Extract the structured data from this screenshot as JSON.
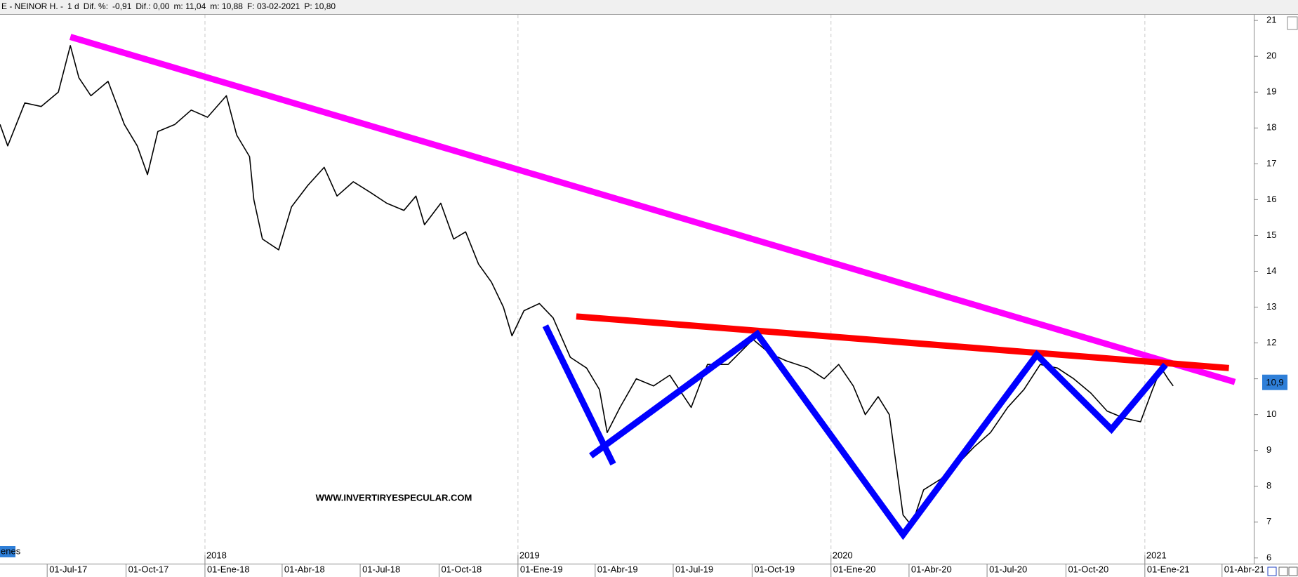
{
  "chart_data": {
    "type": "line",
    "header": [
      {
        "text": "E - NEINOR H. -",
        "color": "#000000"
      },
      {
        "text": "1 d",
        "color": "#000000"
      },
      {
        "text": "Dif. %:",
        "color": "#000000"
      },
      {
        "text": "-0,91",
        "color": "#e00000"
      },
      {
        "text": "Dif.: 0,00",
        "color": "#000000"
      },
      {
        "text": "m: 11,04",
        "color": "#000000"
      },
      {
        "text": "m: 10,88",
        "color": "#000000"
      },
      {
        "text": "F: 03-02-2021",
        "color": "#000000"
      },
      {
        "text": "P: 10,80",
        "color": "#e00000"
      }
    ],
    "watermark": "WWW.INVERTIRYESPECULAR.COM",
    "panel_label": "enes",
    "last_price": {
      "value": 10.9,
      "label": "10,9"
    },
    "xlim": [
      "2017-05-07",
      "2021-05-08"
    ],
    "xticks": [
      {
        "value": "2017-07-01",
        "label": "01-Jul-17"
      },
      {
        "value": "2017-10-01",
        "label": "01-Oct-17"
      },
      {
        "value": "2018-01-01",
        "label": "01-Ene-18"
      },
      {
        "value": "2018-04-01",
        "label": "01-Abr-18"
      },
      {
        "value": "2018-07-01",
        "label": "01-Jul-18"
      },
      {
        "value": "2018-10-01",
        "label": "01-Oct-18"
      },
      {
        "value": "2019-01-01",
        "label": "01-Ene-19"
      },
      {
        "value": "2019-04-01",
        "label": "01-Abr-19"
      },
      {
        "value": "2019-07-01",
        "label": "01-Jul-19"
      },
      {
        "value": "2019-10-01",
        "label": "01-Oct-19"
      },
      {
        "value": "2020-01-01",
        "label": "01-Ene-20"
      },
      {
        "value": "2020-04-01",
        "label": "01-Abr-20"
      },
      {
        "value": "2020-07-01",
        "label": "01-Jul-20"
      },
      {
        "value": "2020-10-01",
        "label": "01-Oct-20"
      },
      {
        "value": "2021-01-01",
        "label": "01-Ene-21"
      },
      {
        "value": "2021-04-01",
        "label": "01-Abr-21"
      }
    ],
    "year_markers": [
      {
        "value": "2018-01-01",
        "label": "2018"
      },
      {
        "value": "2019-01-01",
        "label": "2019"
      },
      {
        "value": "2020-01-01",
        "label": "2020"
      },
      {
        "value": "2021-01-01",
        "label": "2021"
      }
    ],
    "ylim": [
      5.84,
      21.16
    ],
    "yticks": [
      6,
      7,
      8,
      9,
      10,
      11,
      12,
      13,
      14,
      15,
      16,
      17,
      18,
      19,
      20,
      21
    ],
    "series": [
      {
        "color": "#000000",
        "x": [
          "2017-05-07",
          "2017-05-16",
          "2017-06-05",
          "2017-06-24",
          "2017-07-14",
          "2017-07-28",
          "2017-08-07",
          "2017-08-21",
          "2017-09-10",
          "2017-09-29",
          "2017-10-14",
          "2017-10-26",
          "2017-11-07",
          "2017-11-27",
          "2017-12-16",
          "2018-01-04",
          "2018-01-26",
          "2018-02-07",
          "2018-02-22",
          "2018-02-27",
          "2018-03-09",
          "2018-03-28",
          "2018-04-12",
          "2018-05-01",
          "2018-05-20",
          "2018-06-04",
          "2018-06-23",
          "2018-07-13",
          "2018-08-01",
          "2018-08-21",
          "2018-09-04",
          "2018-09-14",
          "2018-10-03",
          "2018-10-18",
          "2018-11-01",
          "2018-11-16",
          "2018-12-01",
          "2018-12-15",
          "2018-12-25",
          "2019-01-08",
          "2019-01-26",
          "2019-02-11",
          "2019-03-03",
          "2019-03-22",
          "2019-04-06",
          "2019-04-15",
          "2019-04-30",
          "2019-05-19",
          "2019-06-08",
          "2019-06-27",
          "2019-07-22",
          "2019-08-10",
          "2019-09-03",
          "2019-10-02",
          "2019-10-22",
          "2019-11-10",
          "2019-12-05",
          "2019-12-24",
          "2020-01-10",
          "2020-01-27",
          "2020-02-10",
          "2020-02-25",
          "2020-03-09",
          "2020-03-15",
          "2020-03-25",
          "2020-04-04",
          "2020-04-18",
          "2020-05-08",
          "2020-05-27",
          "2020-06-16",
          "2020-07-05",
          "2020-07-25",
          "2020-08-13",
          "2020-09-01",
          "2020-09-21",
          "2020-10-10",
          "2020-10-30",
          "2020-11-18",
          "2020-12-08",
          "2020-12-27",
          "2021-01-10",
          "2021-01-20",
          "2021-01-28",
          "2021-02-03"
        ],
        "values": [
          18.1,
          17.5,
          18.7,
          18.6,
          19.0,
          20.3,
          19.4,
          18.9,
          19.3,
          18.1,
          17.5,
          16.7,
          17.9,
          18.1,
          18.5,
          18.3,
          18.9,
          17.8,
          17.2,
          16.0,
          14.9,
          14.6,
          15.8,
          16.4,
          16.9,
          16.1,
          16.5,
          16.2,
          15.9,
          15.7,
          16.1,
          15.3,
          15.9,
          14.9,
          15.1,
          14.2,
          13.7,
          13.0,
          12.2,
          12.9,
          13.1,
          12.7,
          11.6,
          11.3,
          10.7,
          9.5,
          10.2,
          11.0,
          10.8,
          11.1,
          10.2,
          11.4,
          11.4,
          12.1,
          11.7,
          11.5,
          11.3,
          11.0,
          11.4,
          10.8,
          10.0,
          10.5,
          10.0,
          8.96,
          7.2,
          6.9,
          7.9,
          8.2,
          8.6,
          9.1,
          9.5,
          10.2,
          10.7,
          11.4,
          11.3,
          11.0,
          10.6,
          10.1,
          9.9,
          9.8,
          10.7,
          11.3,
          11.0,
          10.8
        ]
      }
    ],
    "overlays": [
      {
        "color": "#ff00ff",
        "x": [
          "2017-07-28",
          "2021-04-16"
        ],
        "values": [
          20.54,
          10.91
        ]
      },
      {
        "color": "#ff0000",
        "x": [
          "2019-03-10",
          "2021-04-09"
        ],
        "values": [
          12.74,
          11.3
        ]
      },
      {
        "color": "#0000ff",
        "x": [
          "2019-02-02",
          "2019-04-22"
        ],
        "values": [
          12.48,
          8.62
        ]
      },
      {
        "color": "#0000ff",
        "x": [
          "2019-03-27",
          "2019-10-07",
          "2020-03-25",
          "2020-08-28",
          "2020-11-23",
          "2021-01-25"
        ],
        "values": [
          8.85,
          12.25,
          6.65,
          11.67,
          9.59,
          11.39
        ]
      }
    ]
  }
}
